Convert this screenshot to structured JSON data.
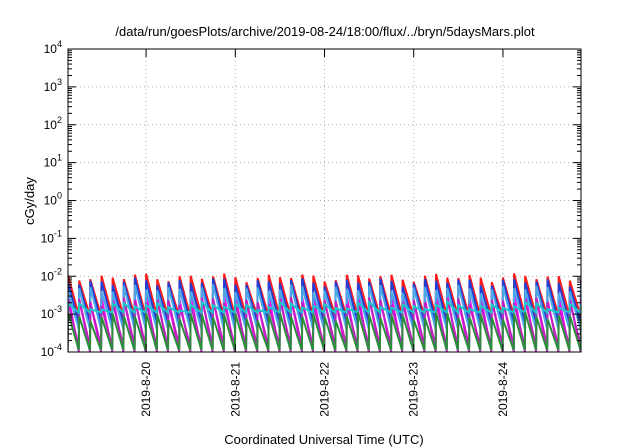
{
  "chart_data": {
    "type": "line",
    "title": "/data/run/goesPlots/archive/2019-08-24/18:00/flux/../bryn/5daysMars.plot",
    "xlabel": "Coordinated Universal Time (UTC)",
    "ylabel": "cGy/day",
    "x_range": [
      "2019-08-19T03:00",
      "2019-08-24T21:00"
    ],
    "x_ticks": [
      "2019-8-20",
      "2019-8-21",
      "2019-8-22",
      "2019-8-23",
      "2019-8-24"
    ],
    "y_scale": "log",
    "ylim": [
      0.0001,
      10000
    ],
    "y_ticks": [
      {
        "base": "10",
        "exp": "-4"
      },
      {
        "base": "10",
        "exp": "-3"
      },
      {
        "base": "10",
        "exp": "-2"
      },
      {
        "base": "10",
        "exp": "-1"
      },
      {
        "base": "10",
        "exp": "0"
      },
      {
        "base": "10",
        "exp": "1"
      },
      {
        "base": "10",
        "exp": "2"
      },
      {
        "base": "10",
        "exp": "3"
      },
      {
        "base": "10",
        "exp": "4"
      }
    ],
    "grid": true,
    "legend": "none",
    "sawtooth_period_hours": 3,
    "series": [
      {
        "color": "#ff00ff",
        "peak": 0.0028,
        "trough": 9e-05
      },
      {
        "color": "#ff1a1a",
        "peak": 0.0095,
        "trough": 0.0009
      },
      {
        "color": "#1f3fd6",
        "peak": 0.0072,
        "trough": 0.0006
      },
      {
        "color": "#4aa8e8",
        "peak": 0.0048,
        "trough": 0.0004
      },
      {
        "color": "#c01fc0",
        "peak": 0.0022,
        "trough": 0.00014
      },
      {
        "color": "#19c9c9",
        "peak": 0.0017,
        "trough": 0.0011
      },
      {
        "color": "#2a8f3a",
        "peak": 0.0009,
        "trough": 0.00011
      }
    ]
  }
}
